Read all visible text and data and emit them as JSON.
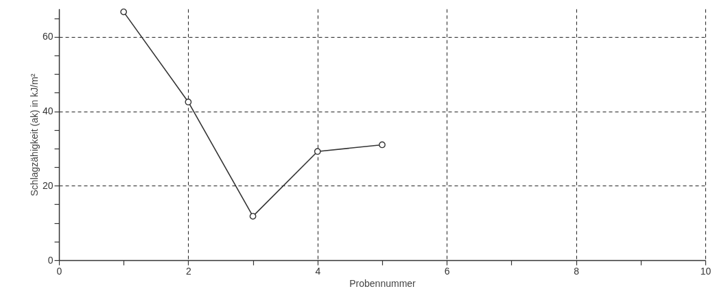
{
  "chart_data": {
    "type": "line",
    "xlabel": "Probennummer",
    "ylabel": "Schlagzähigkeit (ak) in kJ/m²",
    "x": [
      1,
      2,
      3,
      4,
      5
    ],
    "series": [
      {
        "color": "#333333",
        "values": [
          66.7,
          42.5,
          11.8,
          29.2,
          31.0
        ]
      }
    ],
    "xlim": [
      0,
      10
    ],
    "ylim": [
      0,
      67.5
    ],
    "xticks": [
      0,
      {
        "value": 1,
        "label": null
      },
      2,
      {
        "value": 3,
        "label": null
      },
      4,
      {
        "value": 5,
        "label": null
      },
      6,
      {
        "value": 7,
        "label": null
      },
      8,
      {
        "value": 9,
        "label": null
      },
      10
    ],
    "yticks": [
      0,
      {
        "value": 5,
        "label": null
      },
      {
        "value": 10,
        "label": null
      },
      {
        "value": 15,
        "label": null
      },
      20,
      {
        "value": 25,
        "label": null
      },
      {
        "value": 30,
        "label": null
      },
      {
        "value": 35,
        "label": null
      },
      40,
      {
        "value": 45,
        "label": null
      },
      {
        "value": 50,
        "label": null
      },
      {
        "value": 55,
        "label": null
      },
      60,
      {
        "value": 65,
        "label": null
      }
    ],
    "grid": true,
    "marker": "circle",
    "line_style": "solid"
  }
}
